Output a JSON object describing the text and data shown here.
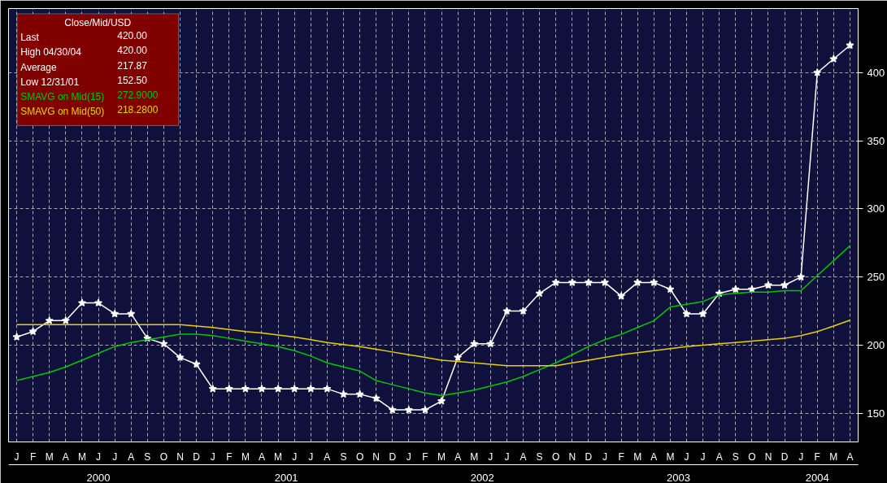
{
  "chart_data": {
    "type": "line",
    "legend_title": "Close/Mid/USD",
    "legend": "top left",
    "annotations": [
      "Last",
      "420.00",
      "High  04/30/04",
      "420.00",
      "Average",
      "217.87",
      "Low  12/31/01",
      "152.50",
      "272.9000",
      "218.2800",
      "2000",
      "2001",
      "2002",
      "2003",
      "2004"
    ],
    "categories": [
      "J",
      "F",
      "M",
      "A",
      "M",
      "J",
      "J",
      "A",
      "S",
      "O",
      "N",
      "D",
      "J",
      "F",
      "M",
      "A",
      "M",
      "J",
      "J",
      "A",
      "S",
      "O",
      "N",
      "D",
      "J",
      "F",
      "M",
      "A",
      "M",
      "J",
      "J",
      "A",
      "S",
      "O",
      "N",
      "D",
      "J",
      "F",
      "M",
      "A",
      "M",
      "J",
      "J",
      "A",
      "S",
      "O",
      "N",
      "D",
      "J",
      "F",
      "M",
      "A"
    ],
    "ylim": [
      129,
      447
    ],
    "yticks": [
      150,
      200,
      250,
      300,
      350,
      400
    ],
    "grid": true,
    "line_style": "solid",
    "series": [
      {
        "color": "#ffffff",
        "marker": "star",
        "values": [
          206,
          210,
          218,
          218,
          231,
          231,
          223,
          223,
          205,
          201,
          191,
          186,
          168,
          168,
          168,
          168,
          168,
          168,
          168,
          168,
          164,
          164,
          161,
          152.5,
          152.5,
          152.5,
          159,
          191,
          201,
          201,
          225,
          225,
          238,
          246,
          246,
          246,
          246,
          236,
          246,
          246,
          241,
          223,
          223,
          238,
          241,
          241,
          244,
          244,
          250,
          400,
          410,
          420
        ]
      },
      {
        "name": "SMAVG on Mid(15)",
        "color": "#00c800",
        "marker": "none",
        "values": [
          174,
          177,
          180,
          184,
          189,
          194,
          199,
          202,
          204,
          206,
          208,
          208,
          207,
          205,
          203,
          201,
          199,
          196,
          192,
          187,
          184,
          181,
          174,
          171,
          168,
          165,
          163,
          165,
          167,
          170,
          173,
          177,
          182,
          187,
          193,
          199,
          204,
          208,
          213,
          218,
          228,
          230,
          232,
          237,
          238,
          239,
          239,
          240,
          240,
          251,
          262,
          272.9
        ]
      },
      {
        "name": "SMAVG on Mid(50)",
        "color": "#e6d200",
        "marker": "none",
        "values": [
          215,
          215,
          215,
          215,
          215,
          215,
          215,
          215,
          215,
          215,
          215,
          214,
          213,
          211.5,
          210,
          209,
          207.5,
          206,
          204,
          202,
          200.5,
          199,
          197,
          195,
          193,
          191,
          189,
          188,
          187,
          186,
          185,
          185,
          185,
          185,
          187,
          189,
          191,
          193,
          194.5,
          196,
          197.5,
          199,
          200,
          201,
          202,
          203,
          204,
          205,
          207,
          210,
          214,
          218.3
        ]
      }
    ]
  }
}
